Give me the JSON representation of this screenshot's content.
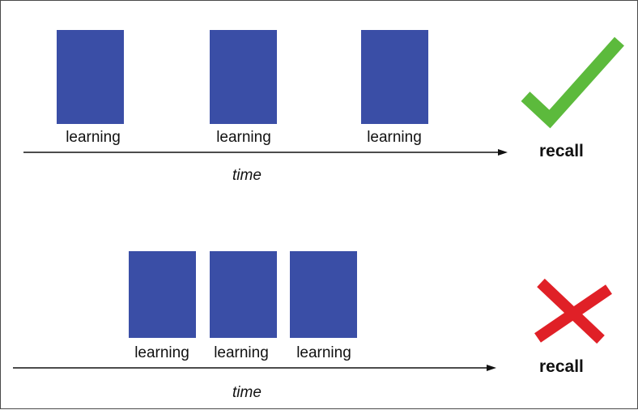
{
  "top": {
    "blocks": [
      {
        "label": "learning"
      },
      {
        "label": "learning"
      },
      {
        "label": "learning"
      }
    ],
    "axis_label": "time",
    "outcome": "recall",
    "outcome_icon": "check-icon",
    "outcome_color": "#5cba3c"
  },
  "bottom": {
    "blocks": [
      {
        "label": "learning"
      },
      {
        "label": "learning"
      },
      {
        "label": "learning"
      }
    ],
    "axis_label": "time",
    "outcome": "recall",
    "outcome_icon": "cross-icon",
    "outcome_color": "#e02027"
  },
  "colors": {
    "block": "#3a4ea6",
    "text": "#111111"
  }
}
